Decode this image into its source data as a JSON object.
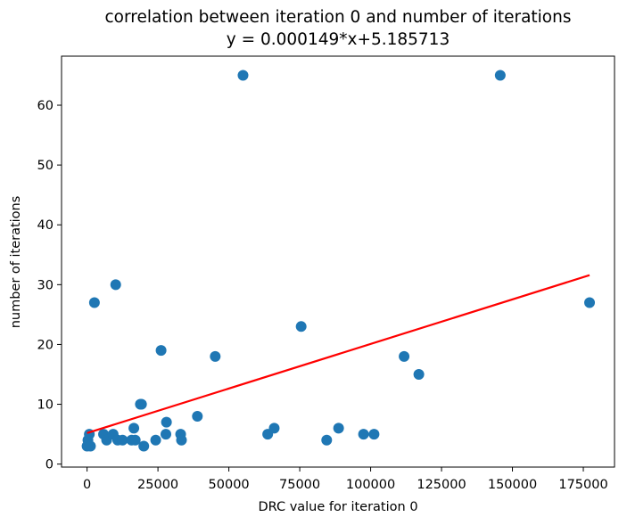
{
  "chart_data": {
    "type": "scatter",
    "title": "correlation between iteration 0 and number of iterations",
    "subtitle": "y = 0.000149*x+5.185713",
    "xlabel": "DRC value for iteration 0",
    "ylabel": "number of iterations",
    "xlim": [
      -9000,
      186000
    ],
    "ylim": [
      -0.5,
      68.2
    ],
    "xticks": [
      0,
      25000,
      50000,
      75000,
      100000,
      125000,
      150000,
      175000
    ],
    "xtick_labels": [
      "0",
      "25000",
      "50000",
      "75000",
      "100000",
      "125000",
      "150000",
      "175000"
    ],
    "yticks": [
      0,
      10,
      20,
      30,
      40,
      50,
      60
    ],
    "ytick_labels": [
      "0",
      "10",
      "20",
      "30",
      "40",
      "50",
      "60"
    ],
    "grid": false,
    "point_color": "#1f77b4",
    "fit_color": "#ff0000",
    "points": [
      {
        "x": 0,
        "y": 3
      },
      {
        "x": 300,
        "y": 4
      },
      {
        "x": 800,
        "y": 5
      },
      {
        "x": 1200,
        "y": 3
      },
      {
        "x": 2600,
        "y": 27
      },
      {
        "x": 5800,
        "y": 5
      },
      {
        "x": 6900,
        "y": 4
      },
      {
        "x": 9200,
        "y": 5
      },
      {
        "x": 10100,
        "y": 30
      },
      {
        "x": 10800,
        "y": 4
      },
      {
        "x": 12500,
        "y": 4
      },
      {
        "x": 15700,
        "y": 4
      },
      {
        "x": 16500,
        "y": 6
      },
      {
        "x": 17000,
        "y": 4
      },
      {
        "x": 18800,
        "y": 10
      },
      {
        "x": 19200,
        "y": 10
      },
      {
        "x": 20000,
        "y": 3
      },
      {
        "x": 24200,
        "y": 4
      },
      {
        "x": 26100,
        "y": 19
      },
      {
        "x": 27800,
        "y": 5
      },
      {
        "x": 28000,
        "y": 7
      },
      {
        "x": 33000,
        "y": 5
      },
      {
        "x": 33300,
        "y": 4
      },
      {
        "x": 38900,
        "y": 8
      },
      {
        "x": 45200,
        "y": 18
      },
      {
        "x": 55000,
        "y": 65
      },
      {
        "x": 63700,
        "y": 5
      },
      {
        "x": 66000,
        "y": 6
      },
      {
        "x": 75500,
        "y": 23
      },
      {
        "x": 84500,
        "y": 4
      },
      {
        "x": 88700,
        "y": 6
      },
      {
        "x": 97500,
        "y": 5
      },
      {
        "x": 101200,
        "y": 5
      },
      {
        "x": 111800,
        "y": 18
      },
      {
        "x": 117000,
        "y": 15
      },
      {
        "x": 145700,
        "y": 65
      },
      {
        "x": 177200,
        "y": 27
      }
    ],
    "fit_line": {
      "slope": 0.000149,
      "intercept": 5.185713,
      "x_range": [
        0,
        177200
      ]
    }
  }
}
